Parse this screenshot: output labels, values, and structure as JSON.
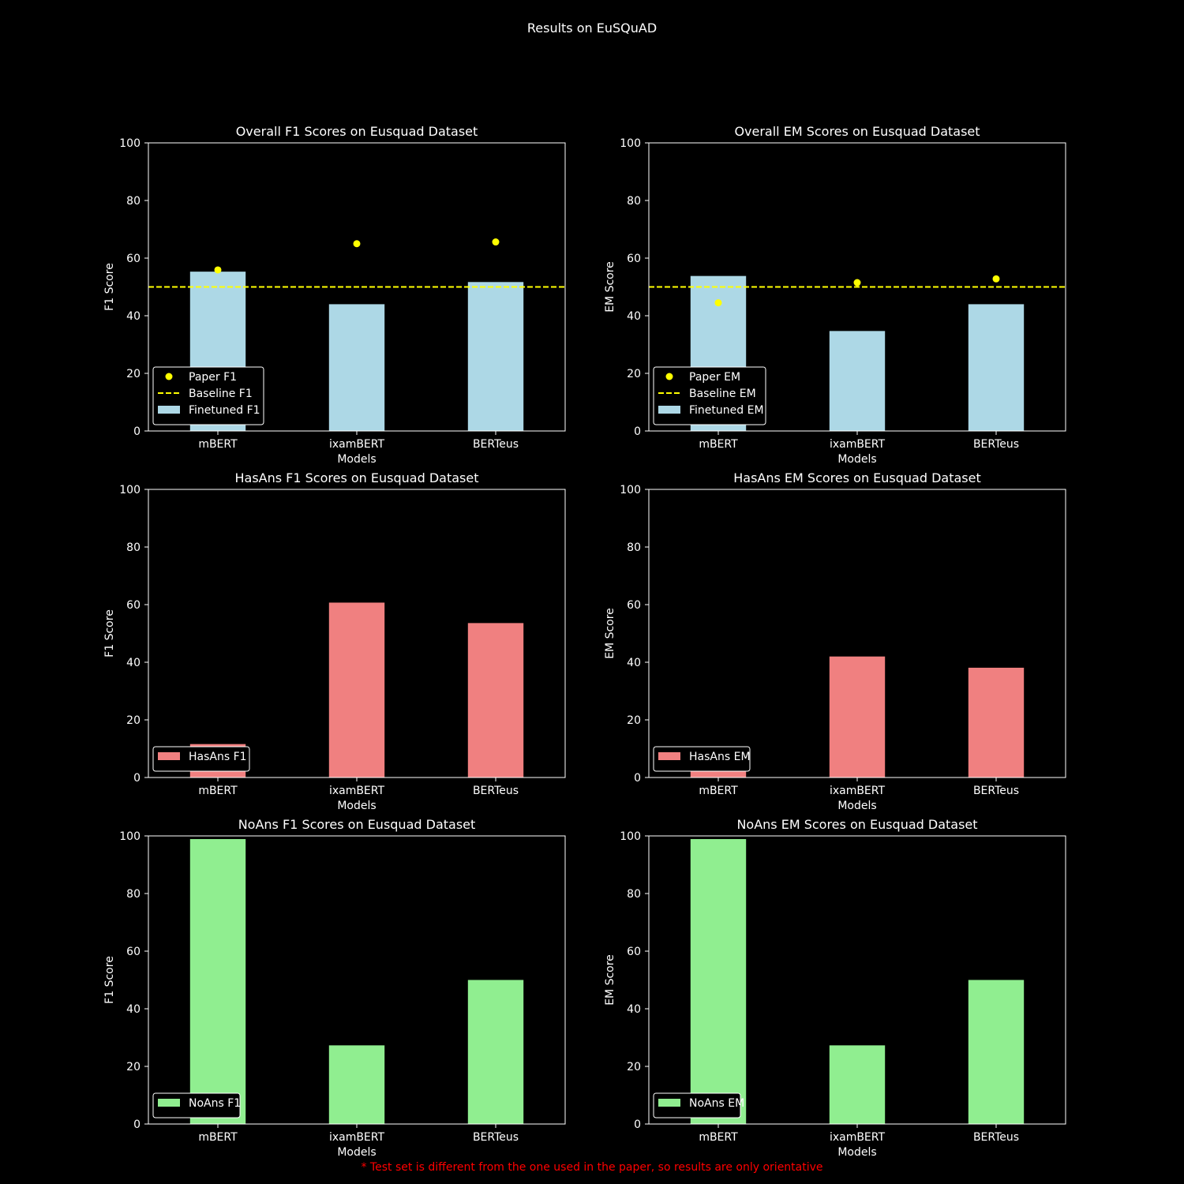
{
  "figure": {
    "title": "Results on EuSQuAD",
    "footnote": "* Test set is different from the one used in the paper, so results are only orientative"
  },
  "colors": {
    "background": "#000000",
    "axis": "#ffffff",
    "finetuned": "#add8e6",
    "hasans": "#f08080",
    "noans": "#90ee90",
    "paper": "#ffff00",
    "baseline": "#ffff00",
    "footnote": "#ff0000"
  },
  "chart_data": [
    {
      "type": "bar",
      "title": "Overall F1 Scores on Eusquad Dataset",
      "xlabel": "Models",
      "ylabel": "F1 Score",
      "categories": [
        "mBERT",
        "ixamBERT",
        "BERTeus"
      ],
      "ylim": [
        0,
        100
      ],
      "yticks": [
        0,
        20,
        40,
        60,
        80,
        100
      ],
      "grid": false,
      "legend_position": "lower-left",
      "series": [
        {
          "name": "Finetuned F1",
          "kind": "bar",
          "color": "#add8e6",
          "values": [
            55.3,
            44.0,
            51.7
          ]
        },
        {
          "name": "Paper F1",
          "kind": "scatter",
          "color": "#ffff00",
          "values": [
            55.9,
            65.0,
            65.6
          ]
        },
        {
          "name": "Baseline F1",
          "kind": "hline",
          "color": "#ffff00",
          "value": 50
        }
      ],
      "legend_order": [
        "Paper F1",
        "Baseline F1",
        "Finetuned F1"
      ]
    },
    {
      "type": "bar",
      "title": "Overall EM Scores on Eusquad Dataset",
      "xlabel": "Models",
      "ylabel": "EM Score",
      "categories": [
        "mBERT",
        "ixamBERT",
        "BERTeus"
      ],
      "ylim": [
        0,
        100
      ],
      "yticks": [
        0,
        20,
        40,
        60,
        80,
        100
      ],
      "grid": false,
      "legend_position": "lower-left",
      "series": [
        {
          "name": "Finetuned EM",
          "kind": "bar",
          "color": "#add8e6",
          "values": [
            53.8,
            34.7,
            44.0
          ]
        },
        {
          "name": "Paper EM",
          "kind": "scatter",
          "color": "#ffff00",
          "values": [
            44.5,
            51.5,
            52.8
          ]
        },
        {
          "name": "Baseline EM",
          "kind": "hline",
          "color": "#ffff00",
          "value": 50
        }
      ],
      "legend_order": [
        "Paper EM",
        "Baseline EM",
        "Finetuned EM"
      ]
    },
    {
      "type": "bar",
      "title": "HasAns F1 Scores on Eusquad Dataset",
      "xlabel": "Models",
      "ylabel": "F1 Score",
      "categories": [
        "mBERT",
        "ixamBERT",
        "BERTeus"
      ],
      "ylim": [
        0,
        100
      ],
      "yticks": [
        0,
        20,
        40,
        60,
        80,
        100
      ],
      "grid": false,
      "legend_position": "lower-left",
      "series": [
        {
          "name": "HasAns F1",
          "kind": "bar",
          "color": "#f08080",
          "values": [
            11.6,
            60.7,
            53.6
          ]
        }
      ],
      "legend_order": [
        "HasAns F1"
      ]
    },
    {
      "type": "bar",
      "title": "HasAns EM Scores on Eusquad Dataset",
      "xlabel": "Models",
      "ylabel": "EM Score",
      "categories": [
        "mBERT",
        "ixamBERT",
        "BERTeus"
      ],
      "ylim": [
        0,
        100
      ],
      "yticks": [
        0,
        20,
        40,
        60,
        80,
        100
      ],
      "grid": false,
      "legend_position": "lower-left",
      "series": [
        {
          "name": "HasAns EM",
          "kind": "bar",
          "color": "#f08080",
          "values": [
            8.6,
            42.0,
            38.1
          ]
        }
      ],
      "legend_order": [
        "HasAns EM"
      ]
    },
    {
      "type": "bar",
      "title": "NoAns F1 Scores on Eusquad Dataset",
      "xlabel": "Models",
      "ylabel": "F1 Score",
      "categories": [
        "mBERT",
        "ixamBERT",
        "BERTeus"
      ],
      "ylim": [
        0,
        100
      ],
      "yticks": [
        0,
        20,
        40,
        60,
        80,
        100
      ],
      "grid": false,
      "legend_position": "lower-left",
      "series": [
        {
          "name": "NoAns F1",
          "kind": "bar",
          "color": "#90ee90",
          "values": [
            98.9,
            27.3,
            50.0
          ]
        }
      ],
      "legend_order": [
        "NoAns F1"
      ]
    },
    {
      "type": "bar",
      "title": "NoAns EM Scores on Eusquad Dataset",
      "xlabel": "Models",
      "ylabel": "EM Score",
      "categories": [
        "mBERT",
        "ixamBERT",
        "BERTeus"
      ],
      "ylim": [
        0,
        100
      ],
      "yticks": [
        0,
        20,
        40,
        60,
        80,
        100
      ],
      "grid": false,
      "legend_position": "lower-left",
      "series": [
        {
          "name": "NoAns EM",
          "kind": "bar",
          "color": "#90ee90",
          "values": [
            98.9,
            27.3,
            50.0
          ]
        }
      ],
      "legend_order": [
        "NoAns EM"
      ]
    }
  ]
}
